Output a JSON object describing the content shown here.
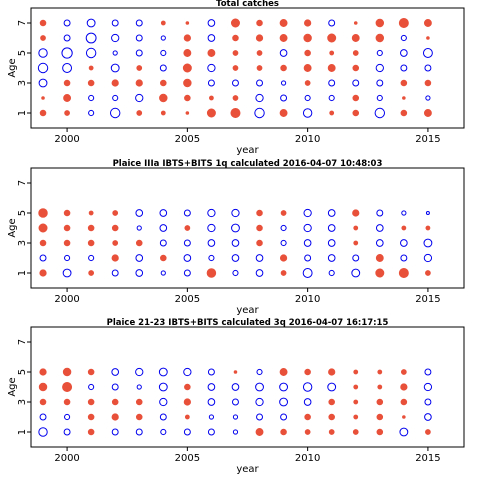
{
  "page": {
    "background": "#ffffff",
    "pos_color": "#e8503a",
    "neg_color": "#0000ee"
  },
  "chart_data": [
    {
      "type": "scatter",
      "title": "Total catches",
      "xlabel": "year",
      "ylabel": "Age",
      "xlim": [
        1998.5,
        2016.5
      ],
      "ylim": [
        0,
        8
      ],
      "xticks": [
        2000,
        2005,
        2010,
        2015
      ],
      "yticks": [
        1,
        3,
        5,
        7
      ],
      "encoding": "bubble; filled red = positive, open blue = negative; size proportional to |value|",
      "years": [
        1999,
        2000,
        2001,
        2002,
        2003,
        2004,
        2005,
        2006,
        2007,
        2008,
        2009,
        2010,
        2011,
        2012,
        2013,
        2014,
        2015
      ],
      "ages": [
        1,
        2,
        3,
        4,
        5,
        6,
        7
      ],
      "values": [
        [
          2,
          1.5,
          -1.5,
          -5,
          1.5,
          1,
          0.5,
          4,
          5,
          -5,
          3,
          -4,
          1,
          2,
          -5,
          2,
          3
        ],
        [
          0.5,
          3,
          -1.5,
          -1.5,
          -3,
          3.5,
          2,
          1,
          1.5,
          -3,
          -2,
          -1.5,
          -1.5,
          2,
          -1.5,
          0.5,
          -1
        ],
        [
          -3.5,
          2,
          2,
          2.5,
          2.5,
          2,
          3.5,
          -2,
          -2,
          -2,
          -1,
          1.5,
          -2,
          -2,
          -2,
          2,
          2
        ],
        [
          -5,
          -4.5,
          1,
          -3.5,
          1.5,
          -2,
          4,
          -3,
          1.5,
          1.5,
          2,
          3,
          3,
          2,
          -3,
          -2,
          -2
        ],
        [
          -4,
          -6,
          -5,
          -1,
          -2,
          -1.5,
          3,
          3,
          1.5,
          1.5,
          -2.5,
          2,
          1,
          1.5,
          -1.5,
          -2.5,
          -4.5
        ],
        [
          1.5,
          -2,
          -5.5,
          -3,
          -2,
          -1,
          2.5,
          -2.5,
          2,
          2.5,
          3,
          3.5,
          4,
          3,
          3.5,
          -1.5,
          0.5
        ],
        [
          2,
          -2,
          -3.5,
          -2,
          -2,
          1,
          0.5,
          -2.5,
          4,
          2,
          3,
          2.5,
          -2,
          0.5,
          3.5,
          5,
          3
        ]
      ]
    },
    {
      "type": "scatter",
      "title": "Plaice IIIa IBTS+BITS 1q calculated 2016-04-07 10:48:03",
      "xlabel": "year",
      "ylabel": "Age",
      "xlim": [
        1998.5,
        2016.5
      ],
      "ylim": [
        0,
        8
      ],
      "xticks": [
        2000,
        2005,
        2010,
        2015
      ],
      "yticks": [
        1,
        3,
        5,
        7
      ],
      "encoding": "bubble; filled red = positive, open blue = negative; size proportional to |value|",
      "years": [
        1999,
        2000,
        2001,
        2002,
        2003,
        2004,
        2005,
        2006,
        2007,
        2008,
        2009,
        2010,
        2011,
        2012,
        2013,
        2014,
        2015
      ],
      "ages": [
        1,
        2,
        3,
        4,
        5
      ],
      "values": [
        [
          2.5,
          -3.5,
          1.5,
          -2,
          -2.5,
          -1,
          -2,
          4.5,
          -1.5,
          -2.5,
          1.5,
          -4.5,
          -1.5,
          -3.5,
          4,
          5,
          1.5
        ],
        [
          -2,
          -1.5,
          -1.5,
          2.5,
          -2.5,
          2,
          -2.5,
          -1.5,
          -2.5,
          -2.5,
          2.5,
          -2,
          -2.5,
          -2,
          3,
          -2,
          -3
        ],
        [
          2,
          2,
          2,
          1.5,
          2,
          -2,
          -2,
          -2.5,
          -2.5,
          2,
          -1.5,
          -2.5,
          -2.5,
          1,
          -2.5,
          -2.5,
          -3.5
        ],
        [
          4,
          2,
          2,
          2,
          -1,
          -2.5,
          1.5,
          -3,
          -3.5,
          2,
          -1.5,
          -3,
          -2.5,
          1,
          -2.5,
          1,
          1
        ],
        [
          4.5,
          2,
          1,
          1.5,
          -2.5,
          -2.5,
          -2,
          -3,
          -3,
          2,
          1.5,
          -3,
          -2.5,
          2.5,
          -2,
          -1,
          -0.5
        ]
      ]
    },
    {
      "type": "scatter",
      "title": "Plaice 21-23 IBTS+BITS calculated 3q 2016-04-07 16:17:15",
      "xlabel": "year",
      "ylabel": "Age",
      "xlim": [
        1998.5,
        2016.5
      ],
      "ylim": [
        0,
        8
      ],
      "xticks": [
        2000,
        2005,
        2010,
        2015
      ],
      "yticks": [
        1,
        3,
        5,
        7
      ],
      "encoding": "bubble; filled red = positive, open blue = negative; size proportional to |value|",
      "years": [
        1999,
        2000,
        2001,
        2002,
        2003,
        2004,
        2005,
        2006,
        2007,
        2008,
        2009,
        2010,
        2011,
        2012,
        2013,
        2014,
        2015
      ],
      "ages": [
        1,
        2,
        3,
        4,
        5
      ],
      "values": [
        [
          -4,
          -2,
          2,
          -2,
          -2,
          -1.5,
          -2,
          -2,
          -1,
          3,
          2,
          1.5,
          1.5,
          1.5,
          2,
          -3.5,
          1.5
        ],
        [
          -2,
          -1.5,
          2,
          2.5,
          2,
          -2,
          1,
          -1,
          -1,
          -2,
          -2,
          2,
          2,
          1,
          2,
          0.5,
          -2.5
        ],
        [
          2,
          2,
          2,
          2,
          2,
          -3,
          2.5,
          -2.5,
          -2,
          -3,
          -3.5,
          -2.5,
          2,
          1,
          2,
          2,
          -2
        ],
        [
          3.5,
          5,
          -1.5,
          -2,
          -1,
          -3.5,
          2,
          -2.5,
          -2.5,
          -3.5,
          -3.5,
          -4,
          -3.5,
          1,
          1,
          2.5,
          -3
        ],
        [
          2.5,
          3.5,
          2,
          -2.5,
          -3,
          -3.5,
          -3,
          -2,
          0.5,
          -1.5,
          3,
          2,
          2.5,
          1,
          1,
          1.5,
          -2
        ]
      ]
    }
  ]
}
